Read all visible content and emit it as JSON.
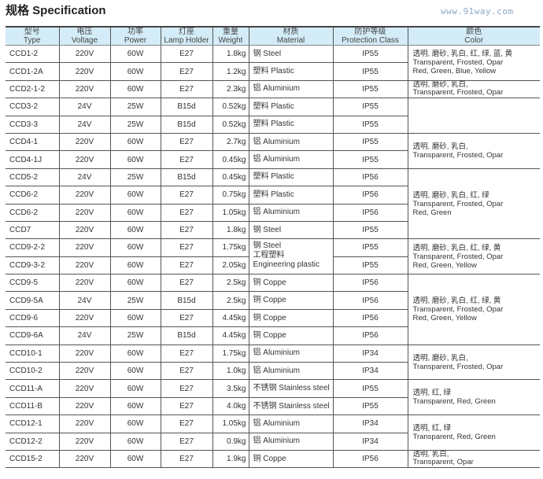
{
  "title": "规格 Specification",
  "watermark": "www.91way.com",
  "headers": [
    {
      "cn": "型号",
      "en": "Type"
    },
    {
      "cn": "电压",
      "en": "Voltage"
    },
    {
      "cn": "功率",
      "en": "Power"
    },
    {
      "cn": "灯座",
      "en": "Lamp Holder"
    },
    {
      "cn": "重量",
      "en": "Weight"
    },
    {
      "cn": "材质",
      "en": "Material"
    },
    {
      "cn": "防护等级",
      "en": "Protection Class"
    },
    {
      "cn": "颜色",
      "en": "Color"
    }
  ],
  "rows": [
    {
      "type": "CCD1-2",
      "voltage": "220V",
      "power": "60W",
      "holder": "E27",
      "weight": "1.8kg",
      "material": "钢 Steel",
      "ip": "IP55"
    },
    {
      "type": "CCD1-2A",
      "voltage": "220V",
      "power": "60W",
      "holder": "E27",
      "weight": "1.2kg",
      "material": "塑料 Plastic",
      "ip": "IP55"
    },
    {
      "type": "CCD2-1-2",
      "voltage": "220V",
      "power": "60W",
      "holder": "E27",
      "weight": "2.3kg",
      "material": "铝 Aluminium",
      "ip": "IP55"
    },
    {
      "type": "CCD3-2",
      "voltage": "24V",
      "power": "25W",
      "holder": "B15d",
      "weight": "0.52kg",
      "material": "塑料 Plastic",
      "ip": "IP55"
    },
    {
      "type": "CCD3-3",
      "voltage": "24V",
      "power": "25W",
      "holder": "B15d",
      "weight": "0.52kg",
      "material": "塑料 Plastic",
      "ip": "IP55"
    },
    {
      "type": "CCD4-1",
      "voltage": "220V",
      "power": "60W",
      "holder": "E27",
      "weight": "2.7kg",
      "material": "铝 Aluminium",
      "ip": "IP55"
    },
    {
      "type": "CCD4-1J",
      "voltage": "220V",
      "power": "60W",
      "holder": "E27",
      "weight": "0.45kg",
      "material": "铝 Aluminium",
      "ip": "IP55"
    },
    {
      "type": "CCD5-2",
      "voltage": "24V",
      "power": "25W",
      "holder": "B15d",
      "weight": "0.45kg",
      "material": "塑料 Plastic",
      "ip": "IP56"
    },
    {
      "type": "CCD6-2",
      "voltage": "220V",
      "power": "60W",
      "holder": "E27",
      "weight": "0.75kg",
      "material": "塑料 Plastic",
      "ip": "IP56"
    },
    {
      "type": "CCD6-2",
      "voltage": "220V",
      "power": "60W",
      "holder": "E27",
      "weight": "1.05kg",
      "material": "铝 Aluminium",
      "ip": "IP56"
    },
    {
      "type": "CCD7",
      "voltage": "220V",
      "power": "60W",
      "holder": "E27",
      "weight": "1.8kg",
      "material": "钢 Steel",
      "ip": "IP55"
    },
    {
      "type": "CCD9-2-2",
      "voltage": "220V",
      "power": "60W",
      "holder": "E27",
      "weight": "1.75kg",
      "material": "钢 Steel|工程塑料|Engineering plastic",
      "ip": "IP55"
    },
    {
      "type": "CCD9-3-2",
      "voltage": "220V",
      "power": "60W",
      "holder": "E27",
      "weight": "2.05kg",
      "material": null,
      "ip": "IP55"
    },
    {
      "type": "CCD9-5",
      "voltage": "220V",
      "power": "60W",
      "holder": "E27",
      "weight": "2.5kg",
      "material": "铜 Coppe",
      "ip": "IP56"
    },
    {
      "type": "CCD9-5A",
      "voltage": "24V",
      "power": "25W",
      "holder": "B15d",
      "weight": "2.5kg",
      "material": "铜 Coppe",
      "ip": "IP56"
    },
    {
      "type": "CCD9-6",
      "voltage": "220V",
      "power": "60W",
      "holder": "E27",
      "weight": "4.45kg",
      "material": "铜 Coppe",
      "ip": "IP56"
    },
    {
      "type": "CCD9-6A",
      "voltage": "24V",
      "power": "25W",
      "holder": "B15d",
      "weight": "4.45kg",
      "material": "铜 Coppe",
      "ip": "IP56"
    },
    {
      "type": "CCD10-1",
      "voltage": "220V",
      "power": "60W",
      "holder": "E27",
      "weight": "1.75kg",
      "material": "铝 Aluminium",
      "ip": "IP34"
    },
    {
      "type": "CCD10-2",
      "voltage": "220V",
      "power": "60W",
      "holder": "E27",
      "weight": "1.0kg",
      "material": "铝 Aluminium",
      "ip": "IP34"
    },
    {
      "type": "CCD11-A",
      "voltage": "220V",
      "power": "60W",
      "holder": "E27",
      "weight": "3.5kg",
      "material": "不锈钢 Stainless steel",
      "ip": "IP55"
    },
    {
      "type": "CCD11-B",
      "voltage": "220V",
      "power": "60W",
      "holder": "E27",
      "weight": "4.0kg",
      "material": "不锈钢 Stainless steel",
      "ip": "IP55"
    },
    {
      "type": "CCD12-1",
      "voltage": "220V",
      "power": "60W",
      "holder": "E27",
      "weight": "1.05kg",
      "material": "铝 Aluminium",
      "ip": "IP34"
    },
    {
      "type": "CCD12-2",
      "voltage": "220V",
      "power": "60W",
      "holder": "E27",
      "weight": "0.9kg",
      "material": "铝 Aluminium",
      "ip": "IP34"
    },
    {
      "type": "CCD15-2",
      "voltage": "220V",
      "power": "60W",
      "holder": "E27",
      "weight": "1.9kg",
      "material": "铜 Coppe",
      "ip": "IP56"
    }
  ],
  "color_groups": [
    {
      "first_row": 0,
      "rows": 2,
      "lines": [
        "透明, 磨砂, 乳白, 红, 绿, 蓝, 黄",
        "Transparent, Frosted, Opar",
        "Red, Green, Blue, Yellow"
      ]
    },
    {
      "first_row": 2,
      "rows": 1,
      "lines": [
        "透明, 磨砂, 乳白,",
        "Transparent, Frosted, Opar"
      ]
    },
    {
      "first_row": 3,
      "rows": 2,
      "lines": []
    },
    {
      "first_row": 5,
      "rows": 2,
      "lines": [
        "透明, 磨砂, 乳白,",
        "Transparent, Frosted, Opar"
      ]
    },
    {
      "first_row": 7,
      "rows": 4,
      "lines": [
        "透明, 磨砂, 乳白, 红, 绿",
        "Transparent, Frosted, Opar",
        "Red, Green"
      ]
    },
    {
      "first_row": 11,
      "rows": 2,
      "lines": [
        "透明, 磨砂, 乳白, 红, 绿, 黄",
        "Transparent, Frosted, Opar",
        "Red, Green, Yellow"
      ]
    },
    {
      "first_row": 13,
      "rows": 4,
      "lines": [
        "透明, 磨砂, 乳白, 红, 绿, 黄",
        "Transparent, Frosted, Opar",
        "Red, Green, Yellow"
      ]
    },
    {
      "first_row": 17,
      "rows": 2,
      "lines": [
        "透明, 磨砂, 乳白,",
        "Transparent, Frosted, Opar"
      ]
    },
    {
      "first_row": 19,
      "rows": 2,
      "lines": [
        "透明, 红, 绿",
        "Transparent, Red, Green"
      ]
    },
    {
      "first_row": 21,
      "rows": 2,
      "lines": [
        "透明, 红, 绿",
        "Transparent, Red, Green"
      ]
    },
    {
      "first_row": 23,
      "rows": 1,
      "lines": [
        "透明, 乳白,",
        "Transparent, Opar"
      ]
    }
  ],
  "colors": {
    "header_bg": "#d3ecf7",
    "watermark": "#8fa9c8"
  }
}
